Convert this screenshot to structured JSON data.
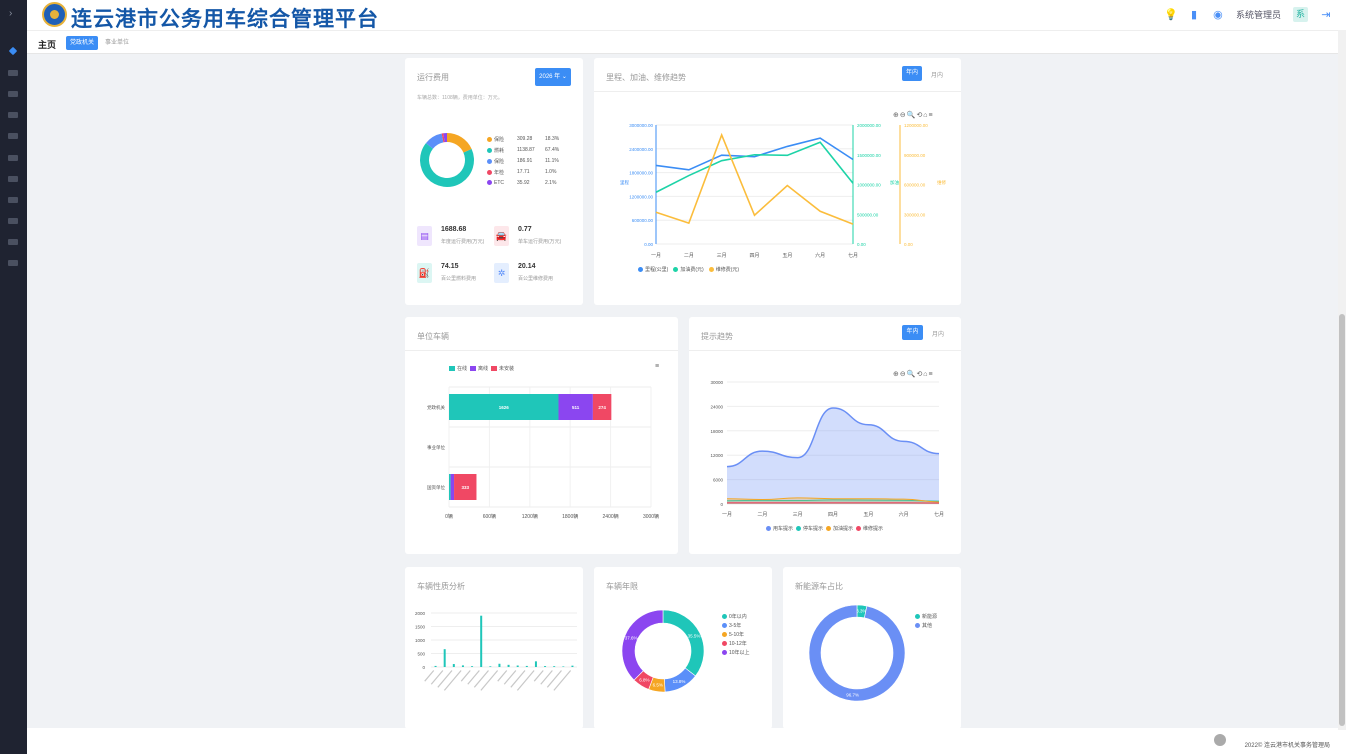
{
  "app": {
    "title": "连云港市公务用车综合管理平台",
    "user": "系统管理员",
    "avatar": "系"
  },
  "subnav": {
    "home": "主页",
    "tabs": [
      "党政机关",
      "事业单位"
    ]
  },
  "running": {
    "title": "运行费用",
    "year_btn": "2026 年 ⌄",
    "note": "车辆总数：1108辆，费用单位：万元。",
    "legend": [
      {
        "name": "保险",
        "value": "309.28",
        "pct": "18.3%",
        "color": "#f5a623"
      },
      {
        "name": "燃耗",
        "value": "1138.87",
        "pct": "67.4%",
        "color": "#1fc6b9"
      },
      {
        "name": "保险",
        "value": "186.91",
        "pct": "11.1%",
        "color": "#5b8ff9"
      },
      {
        "name": "年检",
        "value": "17.71",
        "pct": "1.0%",
        "color": "#f04864"
      },
      {
        "name": "ETC",
        "value": "35.92",
        "pct": "2.1%",
        "color": "#8b46f0"
      }
    ],
    "stats": [
      {
        "v": "1688.68",
        "l": "年度运行费用(万元)",
        "icon": "coins-icon",
        "glyph": "▤",
        "bg": "#efe6fd",
        "fg": "#8b46f0"
      },
      {
        "v": "0.77",
        "l": "单车运行费用(万元)",
        "icon": "car-icon",
        "glyph": "🚘",
        "bg": "#fde7ea",
        "fg": "#f04864"
      },
      {
        "v": "74.15",
        "l": "百公里燃料费用",
        "icon": "fuel-icon",
        "glyph": "⛽",
        "bg": "#dcf6f3",
        "fg": "#1fc6b9"
      },
      {
        "v": "20.14",
        "l": "百公里维修费用",
        "icon": "wrench-icon",
        "glyph": "✲",
        "bg": "#e4eefe",
        "fg": "#5b8ff9"
      }
    ]
  },
  "trend": {
    "title": "里程、加油、维修趋势",
    "tabs": [
      "年内",
      "月内"
    ]
  },
  "unit": {
    "title": "单位车辆"
  },
  "warn": {
    "title": "提示趋势",
    "tabs": [
      "年内",
      "月内"
    ]
  },
  "nature": {
    "title": "车辆性质分析"
  },
  "age": {
    "title": "车辆年限"
  },
  "ev": {
    "title": "新能源车占比"
  },
  "footer": {
    "copy": "2022© 连云港市机关事务管理局"
  },
  "chart_data": [
    {
      "type": "pie",
      "title": "运行费用",
      "categories": [
        "保险",
        "燃耗",
        "保险",
        "年检",
        "ETC"
      ],
      "values": [
        309.28,
        1138.87,
        186.91,
        17.71,
        35.92
      ]
    },
    {
      "type": "line",
      "title": "里程、加油、维修趋势",
      "categories": [
        "一月",
        "二月",
        "三月",
        "四月",
        "五月",
        "六月",
        "七月"
      ],
      "axes": {
        "left": {
          "label": "里程",
          "ticks": [
            "3000000.00",
            "2400000.00",
            "1800000.00",
            "1200000.00",
            "600000.00",
            "0.00"
          ],
          "ylim": [
            0,
            3000000
          ]
        },
        "mid": {
          "label": "加油",
          "ticks": [
            "2000000.00",
            "1500000.00",
            "1000000.00",
            "500000.00",
            "0.00"
          ],
          "ylim": [
            0,
            2000000
          ]
        },
        "right": {
          "label": "维修",
          "ticks": [
            "1200000.00",
            "900000.00",
            "600000.00",
            "300000.00",
            "0.00"
          ],
          "ylim": [
            0,
            1200000
          ]
        }
      },
      "series": [
        {
          "name": "里程(公里)",
          "axis": "left",
          "color": "#3b8df5",
          "values": [
            1980000,
            1870000,
            2240000,
            2200000,
            2460000,
            2670000,
            2130000
          ]
        },
        {
          "name": "加油费(元)",
          "axis": "mid",
          "color": "#1dd3a7",
          "values": [
            870000,
            1150000,
            1400000,
            1500000,
            1490000,
            1710000,
            1020000
          ]
        },
        {
          "name": "维修费(元)",
          "axis": "right",
          "color": "#fbbd3c",
          "values": [
            320000,
            210000,
            1100000,
            290000,
            590000,
            330000,
            200000
          ]
        }
      ]
    },
    {
      "type": "bar",
      "orientation": "horizontal",
      "stacked": true,
      "title": "单位车辆",
      "categories": [
        "党政机关",
        "事业单位",
        "国资单位"
      ],
      "xticks": [
        "0辆",
        "600辆",
        "1200辆",
        "1800辆",
        "2400辆",
        "3000辆"
      ],
      "xlim": [
        0,
        3000
      ],
      "series": [
        {
          "name": "在线",
          "color": "#1fc6b9",
          "values": [
            1626,
            0,
            24
          ]
        },
        {
          "name": "离线",
          "color": "#8b46f0",
          "values": [
            511,
            0,
            51
          ]
        },
        {
          "name": "未安装",
          "color": "#f04864",
          "values": [
            274,
            0,
            333
          ]
        }
      ]
    },
    {
      "type": "area",
      "title": "提示趋势",
      "categories": [
        "一月",
        "二月",
        "三月",
        "四月",
        "五月",
        "六月",
        "七月"
      ],
      "ylim": [
        0,
        30000
      ],
      "yticks": [
        "30000",
        "24000",
        "18000",
        "12000",
        "6000",
        "0"
      ],
      "series": [
        {
          "name": "用车提示",
          "color": "#6a8ff5",
          "values": [
            9200,
            13000,
            11400,
            23600,
            19500,
            15400,
            12400
          ]
        },
        {
          "name": "停车提示",
          "color": "#1fc6b9",
          "values": [
            800,
            900,
            850,
            1000,
            950,
            900,
            700
          ]
        },
        {
          "name": "加油提示",
          "color": "#f5a623",
          "values": [
            1300,
            1100,
            1500,
            1300,
            1300,
            1200,
            500
          ]
        },
        {
          "name": "维修提示",
          "color": "#f04864",
          "values": [
            300,
            300,
            300,
            300,
            300,
            300,
            250
          ]
        }
      ]
    },
    {
      "type": "bar",
      "title": "车辆性质分析",
      "yticks": [
        "2000",
        "1500",
        "1000",
        "500",
        "0"
      ],
      "ylim": [
        0,
        2000
      ],
      "values": [
        40,
        660,
        110,
        60,
        30,
        1900,
        25,
        120,
        80,
        55,
        40,
        210,
        35,
        30,
        20,
        50
      ]
    },
    {
      "type": "pie",
      "title": "车辆年限",
      "categories": [
        "0年以内",
        "3-5年",
        "5-10年",
        "10-12年",
        "10年以上"
      ],
      "values": [
        35.5,
        13.8,
        6.5,
        6.8,
        37.6
      ],
      "labels": [
        "35.5%",
        "13.8%",
        "6.5%",
        "6.8%",
        "37.6%"
      ],
      "colors": [
        "#1fc6b9",
        "#5b8ff9",
        "#f5a623",
        "#f04864",
        "#8b46f0"
      ]
    },
    {
      "type": "pie",
      "title": "新能源车占比",
      "categories": [
        "新能源",
        "其他"
      ],
      "values": [
        3.3,
        96.7
      ],
      "labels": [
        "3.3%",
        "96.7%"
      ],
      "colors": [
        "#1fc6b9",
        "#6a8ff5"
      ]
    }
  ]
}
